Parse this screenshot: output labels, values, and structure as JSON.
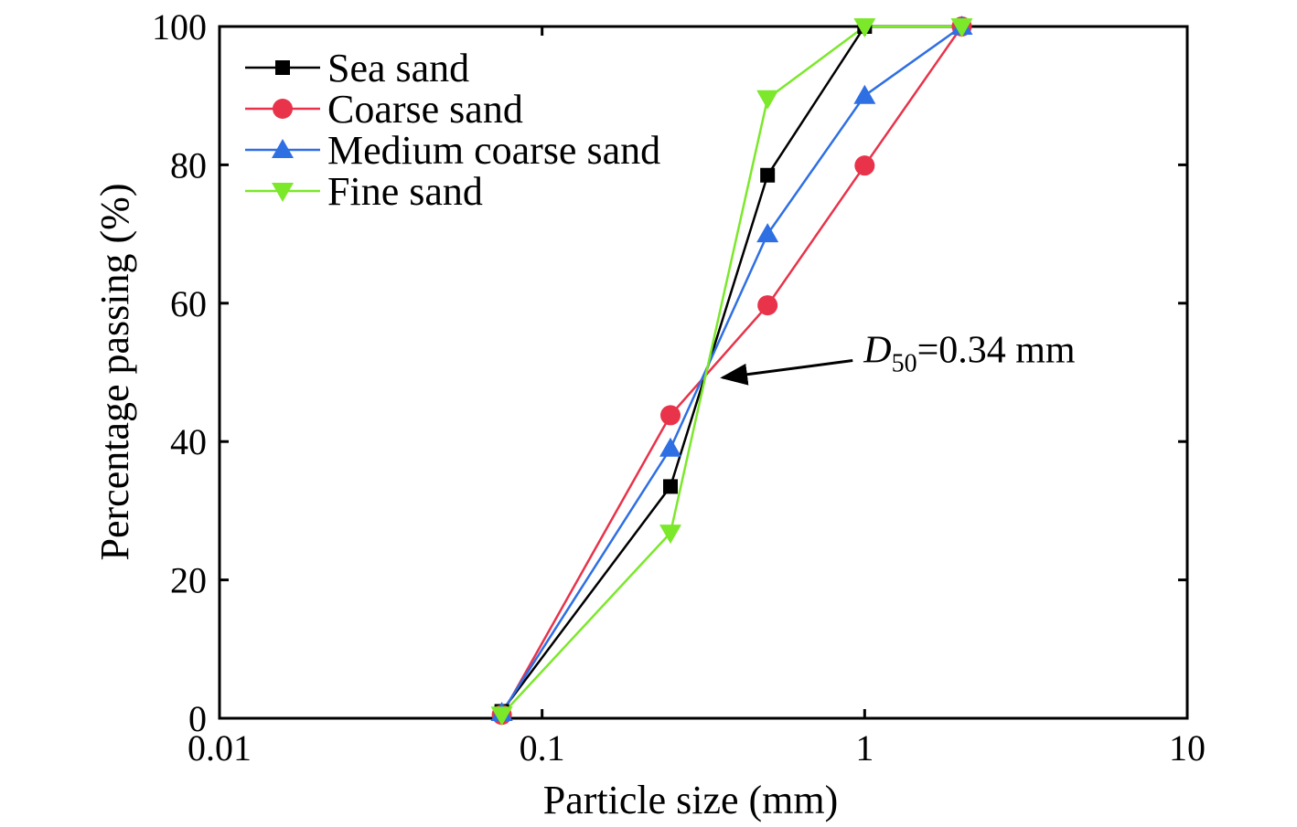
{
  "chart_data": {
    "type": "line",
    "title": "",
    "xlabel": "Particle size (mm)",
    "ylabel": "Percentage passing (%)",
    "x_scale": "log",
    "xlim": [
      0.01,
      10
    ],
    "ylim": [
      0,
      100
    ],
    "x_ticks": [
      {
        "value": 0.01,
        "label": "0.01"
      },
      {
        "value": 0.1,
        "label": "0.1"
      },
      {
        "value": 1,
        "label": "1"
      },
      {
        "value": 10,
        "label": "10"
      }
    ],
    "y_ticks": [
      {
        "value": 0,
        "label": "0"
      },
      {
        "value": 20,
        "label": "20"
      },
      {
        "value": 40,
        "label": "40"
      },
      {
        "value": 60,
        "label": "60"
      },
      {
        "value": 80,
        "label": "80"
      },
      {
        "value": 100,
        "label": "100"
      }
    ],
    "grid": false,
    "legend_position": "top-left",
    "x": [
      0.075,
      0.25,
      0.5,
      1,
      2
    ],
    "series": [
      {
        "name": "Sea sand",
        "color": "#000000",
        "marker": "square",
        "values": [
          1,
          33.5,
          78.5,
          100,
          100
        ]
      },
      {
        "name": "Coarse sand",
        "color": "#e8334a",
        "marker": "circle",
        "values": [
          0.5,
          43.8,
          59.7,
          79.9,
          100
        ]
      },
      {
        "name": "Medium coarse sand",
        "color": "#2f6fe4",
        "marker": "triangle-up",
        "values": [
          0.8,
          39,
          70,
          90,
          100
        ]
      },
      {
        "name": "Fine sand",
        "color": "#7be82a",
        "marker": "triangle-down",
        "values": [
          0.5,
          26.8,
          89.6,
          100,
          100
        ]
      }
    ],
    "annotation": {
      "text_main": "D",
      "text_sub": "50",
      "text_rest": "=0.34 mm",
      "value_x": 0.34,
      "value_y": 49.5,
      "text_x": 0.98,
      "text_y": 53.3
    }
  }
}
